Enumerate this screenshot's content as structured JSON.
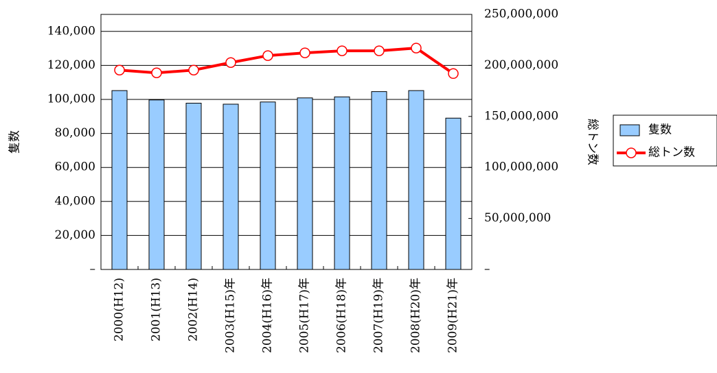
{
  "chart_data": {
    "type": "bar-line",
    "categories": [
      "2000(H12)",
      "2001(H13)",
      "2002(H14)",
      "2003(H15)年",
      "2004(H16)年",
      "2005(H17)年",
      "2006(H18)年",
      "2007(H19)年",
      "2008(H20)年",
      "2009(H21)年"
    ],
    "ylabel": "隻数",
    "y2label": "総トン数",
    "ylim": [
      0,
      150000
    ],
    "yticks": [
      {
        "value": 0,
        "label": "–"
      },
      {
        "value": 20000,
        "label": "20,000"
      },
      {
        "value": 40000,
        "label": "40,000"
      },
      {
        "value": 60000,
        "label": "60,000"
      },
      {
        "value": 80000,
        "label": "80,000"
      },
      {
        "value": 100000,
        "label": "100,000"
      },
      {
        "value": 120000,
        "label": "120,000"
      },
      {
        "value": 140000,
        "label": "140,000"
      }
    ],
    "y2lim": [
      0,
      250000000
    ],
    "y2ticks": [
      {
        "value": 0,
        "label": "–"
      },
      {
        "value": 50000000,
        "label": "50,000,000"
      },
      {
        "value": 100000000,
        "label": "100,000,000"
      },
      {
        "value": 150000000,
        "label": "150,000,000"
      },
      {
        "value": 200000000,
        "label": "200,000,000"
      },
      {
        "value": 250000000,
        "label": "250,000,000"
      }
    ],
    "grid": true,
    "legend": "right",
    "series": [
      {
        "name": "隻数",
        "type": "bar",
        "color": "#99ccff",
        "values": [
          105200,
          99700,
          97800,
          97200,
          98500,
          100900,
          101500,
          104600,
          105200,
          89000
        ]
      },
      {
        "name": "総トン数",
        "type": "line",
        "axis": "y2",
        "color": "#ff0000",
        "values": [
          195400000,
          192700000,
          195400000,
          202800000,
          209600000,
          212300000,
          214300000,
          214300000,
          217000000,
          192000000
        ]
      }
    ]
  }
}
